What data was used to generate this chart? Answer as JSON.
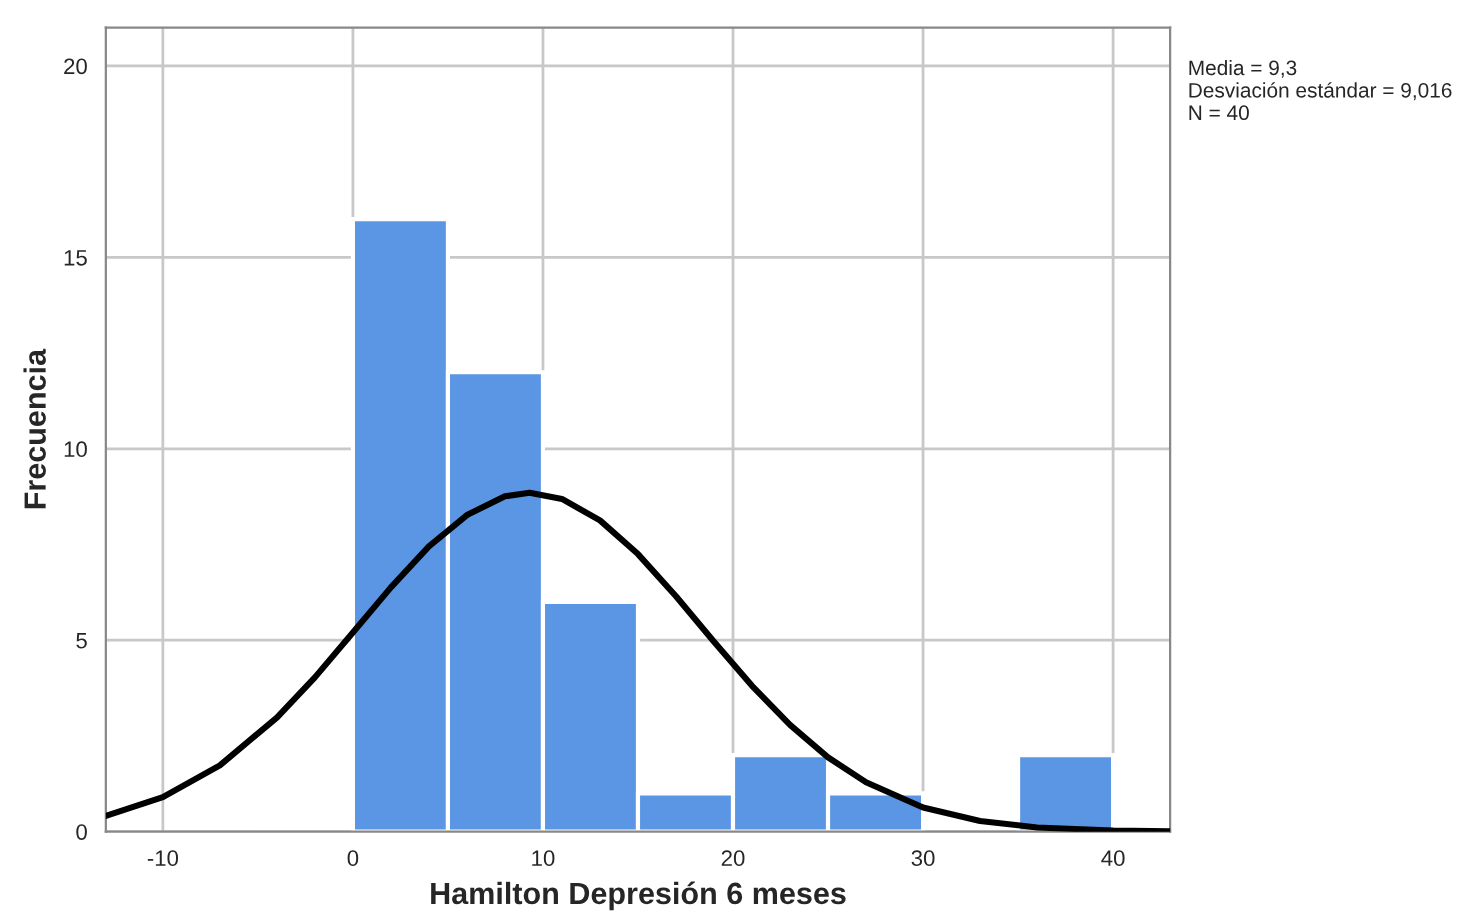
{
  "chart_data": {
    "type": "histogram",
    "xlabel": "Hamilton Depresión 6 meses",
    "ylabel": "Frecuencia",
    "bins": [
      0,
      5,
      10,
      15,
      20,
      25,
      30,
      35,
      40
    ],
    "values": [
      16,
      12,
      6,
      1,
      2,
      1,
      0,
      2
    ],
    "color": "#5a96e3",
    "series": [
      {
        "type": "line",
        "color": "#000000",
        "x": [
          -13,
          -10,
          -7,
          -4,
          -2,
          0,
          2,
          4,
          6,
          8,
          9.3,
          11,
          13,
          15,
          17,
          19,
          21,
          23,
          25,
          27,
          30,
          33,
          36,
          40,
          43
        ],
        "values": [
          0.41,
          0.9,
          1.73,
          2.98,
          4.03,
          5.2,
          6.38,
          7.45,
          8.27,
          8.76,
          8.85,
          8.69,
          8.13,
          7.25,
          6.15,
          4.96,
          3.81,
          2.79,
          1.94,
          1.29,
          0.63,
          0.28,
          0.11,
          0.03,
          0.01
        ]
      }
    ],
    "xlim": [
      -13,
      43
    ],
    "ylim": [
      0,
      21
    ],
    "xticks": [
      -10,
      0,
      10,
      20,
      30,
      40
    ],
    "yticks": [
      0,
      5,
      10,
      15,
      20
    ],
    "grid": true,
    "annotations": [
      "Media = 9,3\nDesviación estándar = 9,016\nN = 40"
    ]
  }
}
